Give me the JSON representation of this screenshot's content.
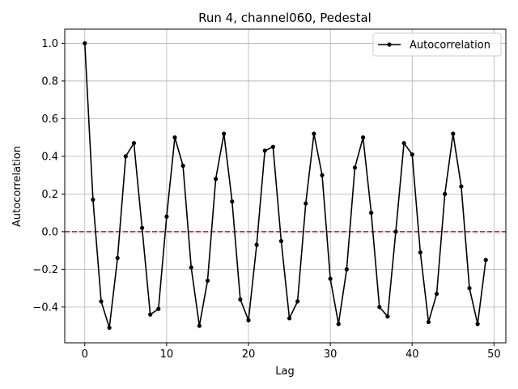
{
  "chart_data": {
    "type": "line",
    "title": "Run 4, channel060, Pedestal",
    "xlabel": "Lag",
    "ylabel": "Autocorrelation",
    "xlim": [
      -2.45,
      51.45
    ],
    "ylim": [
      -0.59,
      1.075
    ],
    "xticks": [
      0,
      10,
      20,
      30,
      40,
      50
    ],
    "yticks": [
      -0.4,
      -0.2,
      0.0,
      0.2,
      0.4,
      0.6,
      0.8,
      1.0
    ],
    "xtick_labels": [
      "0",
      "10",
      "20",
      "30",
      "40",
      "50"
    ],
    "ytick_labels": [
      "−0.4",
      "−0.2",
      "0.0",
      "0.2",
      "0.4",
      "0.6",
      "0.8",
      "1.0"
    ],
    "grid": true,
    "legend": {
      "position": "top-right",
      "entries": [
        "Autocorrelation"
      ]
    },
    "reference_line": {
      "y": 0.0,
      "style": "dashed",
      "color": "#e8000b"
    },
    "series": [
      {
        "name": "Autocorrelation",
        "color": "#000000",
        "marker": "circle",
        "x": [
          0,
          1,
          2,
          3,
          4,
          5,
          6,
          7,
          8,
          9,
          10,
          11,
          12,
          13,
          14,
          15,
          16,
          17,
          18,
          19,
          20,
          21,
          22,
          23,
          24,
          25,
          26,
          27,
          28,
          29,
          30,
          31,
          32,
          33,
          34,
          35,
          36,
          37,
          38,
          39,
          40,
          41,
          42,
          43,
          44,
          45,
          46,
          47,
          48,
          49
        ],
        "y": [
          1.0,
          0.17,
          -0.37,
          -0.51,
          -0.14,
          0.4,
          0.47,
          0.02,
          -0.44,
          -0.41,
          0.08,
          0.5,
          0.35,
          -0.19,
          -0.5,
          -0.26,
          0.28,
          0.52,
          0.16,
          -0.36,
          -0.47,
          -0.07,
          0.43,
          0.45,
          -0.05,
          -0.46,
          -0.37,
          0.15,
          0.52,
          0.3,
          -0.25,
          -0.49,
          -0.2,
          0.34,
          0.5,
          0.1,
          -0.4,
          -0.45,
          0.0,
          0.47,
          0.41,
          -0.11,
          -0.48,
          -0.33,
          0.2,
          0.52,
          0.24,
          -0.3,
          -0.49,
          -0.15
        ]
      }
    ]
  }
}
